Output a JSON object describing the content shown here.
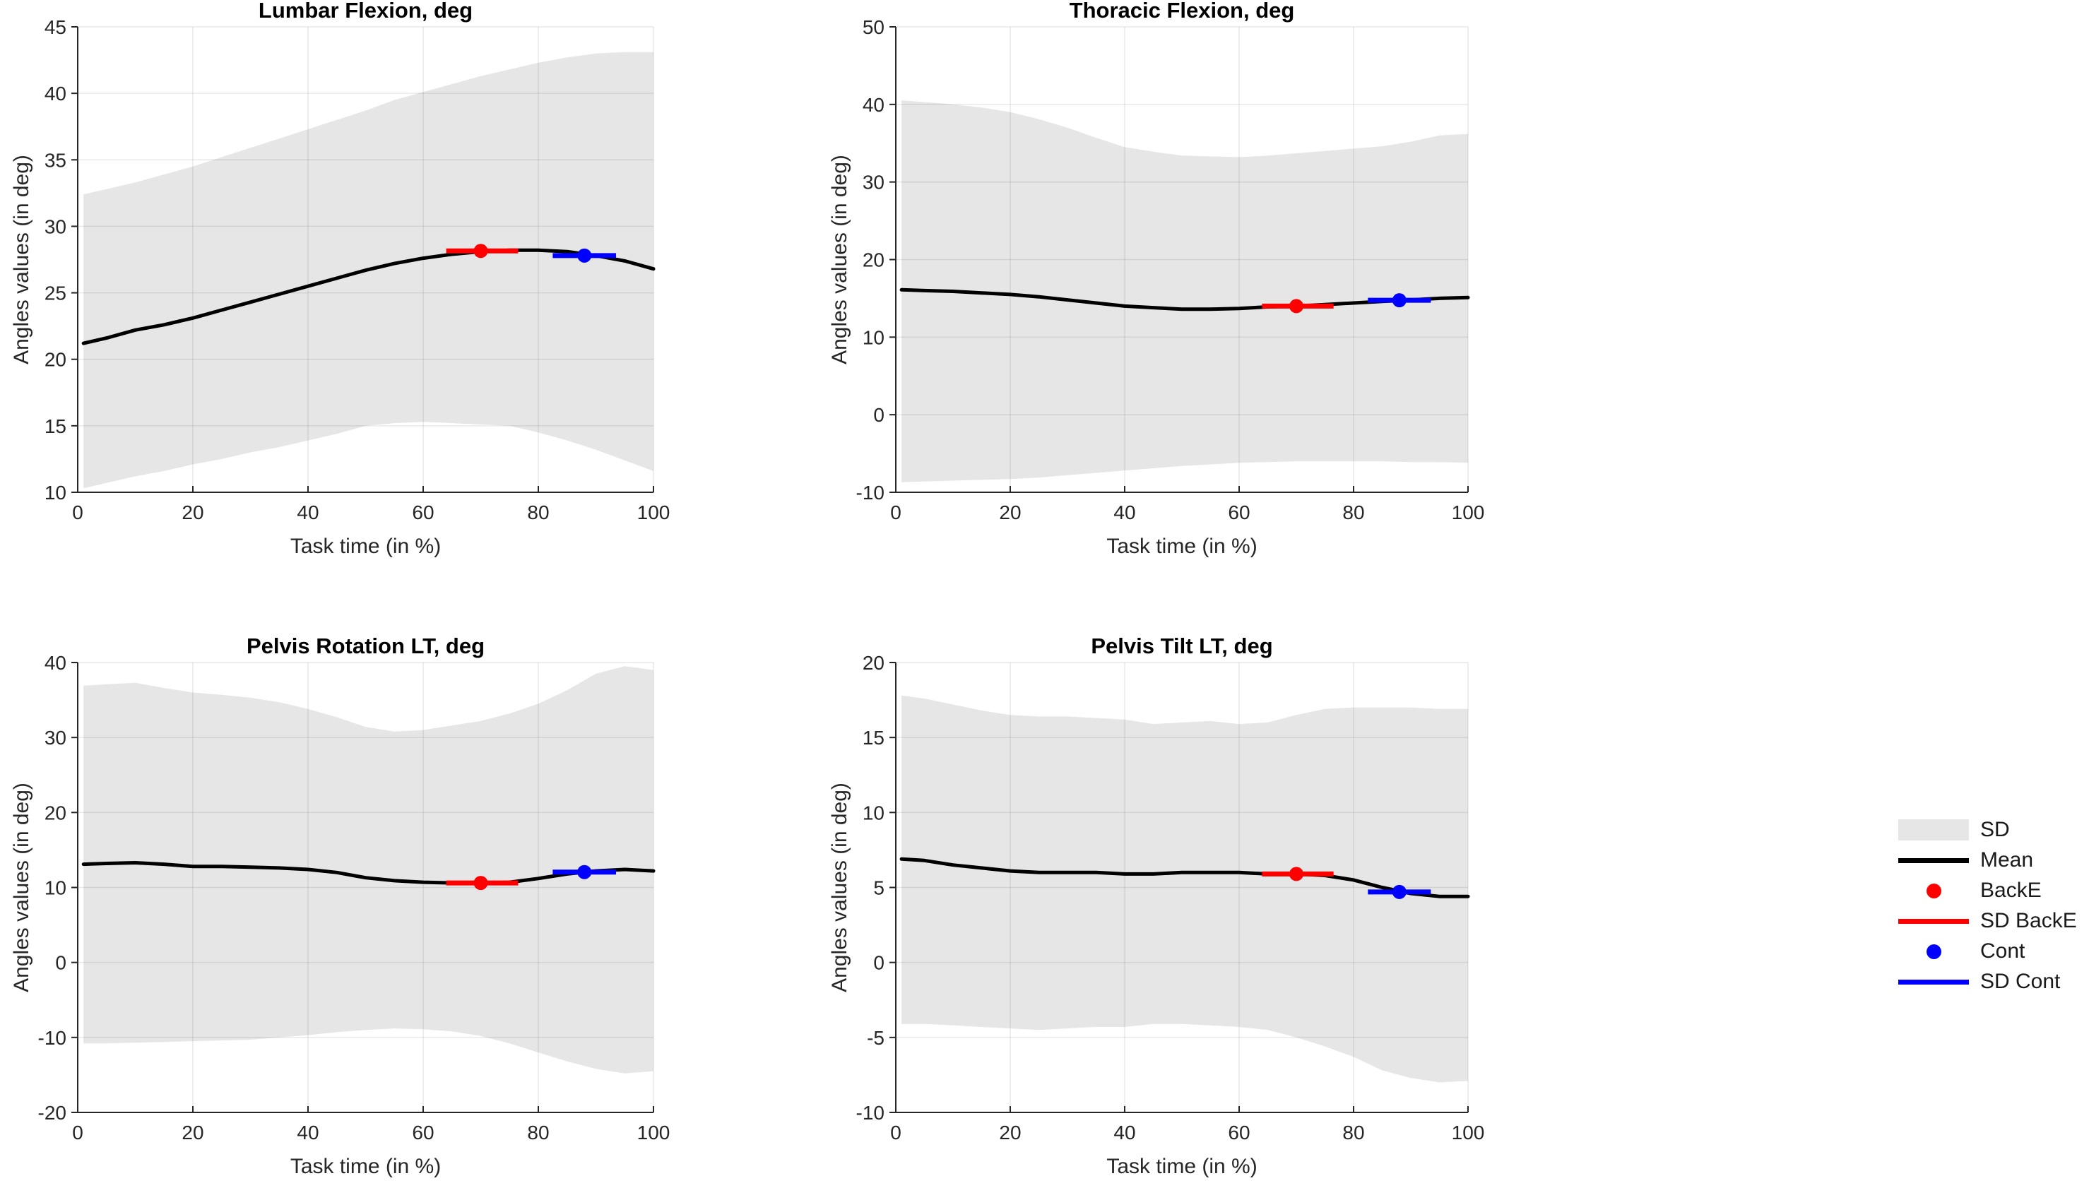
{
  "figure": {
    "background": "#ffffff"
  },
  "colors": {
    "sd_band": "#e6e6e6",
    "mean": "#000000",
    "backe": "#ff0000",
    "cont": "#0000ff",
    "axis": "#262626",
    "grid_alpha": 0.1,
    "tick_label": "#262626",
    "title": "#000000"
  },
  "legend": {
    "position": "right-middle",
    "items": [
      {
        "label": "SD",
        "type": "patch",
        "color": "#e6e6e6"
      },
      {
        "label": "Mean",
        "type": "line",
        "color": "#000000"
      },
      {
        "label": "BackE",
        "type": "dot",
        "color": "#ff0000"
      },
      {
        "label": "SD BackE",
        "type": "line",
        "color": "#ff0000"
      },
      {
        "label": "Cont",
        "type": "dot",
        "color": "#0000ff"
      },
      {
        "label": "SD Cont",
        "type": "line",
        "color": "#0000ff"
      }
    ]
  },
  "chart_data": [
    {
      "type": "line",
      "title": "Lumbar Flexion, deg",
      "xlabel": "Task time (in %)",
      "ylabel": "Angles values (in deg)",
      "xlim": [
        0,
        100
      ],
      "ylim": [
        10,
        45
      ],
      "xticks": [
        0,
        20,
        40,
        60,
        80,
        100
      ],
      "yticks": [
        10,
        15,
        20,
        25,
        30,
        35,
        40,
        45
      ],
      "grid": true,
      "x": [
        1,
        5,
        10,
        15,
        20,
        25,
        30,
        35,
        40,
        45,
        50,
        55,
        60,
        65,
        70,
        75,
        80,
        85,
        90,
        95,
        100
      ],
      "mean": [
        21.2,
        21.6,
        22.2,
        22.6,
        23.1,
        23.7,
        24.3,
        24.9,
        25.5,
        26.1,
        26.7,
        27.2,
        27.6,
        27.9,
        28.1,
        28.2,
        28.2,
        28.1,
        27.8,
        27.4,
        26.8
      ],
      "sd_upper": [
        32.4,
        32.8,
        33.3,
        33.9,
        34.5,
        35.2,
        35.9,
        36.6,
        37.3,
        38.0,
        38.7,
        39.5,
        40.1,
        40.7,
        41.3,
        41.8,
        42.3,
        42.7,
        43.0,
        43.1,
        43.1
      ],
      "sd_lower": [
        10.3,
        10.7,
        11.2,
        11.6,
        12.1,
        12.5,
        13.0,
        13.4,
        13.9,
        14.4,
        15.0,
        15.2,
        15.3,
        15.2,
        15.1,
        15.0,
        14.5,
        13.9,
        13.2,
        12.4,
        11.6
      ],
      "backe": {
        "x": 70,
        "y": 28.15,
        "sd_x": [
          64,
          76.5
        ]
      },
      "cont": {
        "x": 88,
        "y": 27.8,
        "sd_x": [
          82.5,
          93.5
        ]
      }
    },
    {
      "type": "line",
      "title": "Thoracic Flexion, deg",
      "xlabel": "Task time (in %)",
      "ylabel": "Angles values (in deg)",
      "xlim": [
        0,
        100
      ],
      "ylim": [
        -10,
        50
      ],
      "xticks": [
        0,
        20,
        40,
        60,
        80,
        100
      ],
      "yticks": [
        -10,
        0,
        10,
        20,
        30,
        40,
        50
      ],
      "grid": true,
      "x": [
        1,
        5,
        10,
        15,
        20,
        25,
        30,
        35,
        40,
        45,
        50,
        55,
        60,
        65,
        70,
        75,
        80,
        85,
        90,
        95,
        100
      ],
      "mean": [
        16.1,
        16.0,
        15.9,
        15.7,
        15.5,
        15.2,
        14.8,
        14.4,
        14.0,
        13.8,
        13.6,
        13.6,
        13.7,
        13.9,
        14.0,
        14.2,
        14.4,
        14.6,
        14.8,
        15.0,
        15.1
      ],
      "sd_upper": [
        40.5,
        40.3,
        40.0,
        39.6,
        39.0,
        38.1,
        37.0,
        35.7,
        34.5,
        33.9,
        33.4,
        33.3,
        33.2,
        33.4,
        33.7,
        34.0,
        34.3,
        34.6,
        35.2,
        36.0,
        36.2
      ],
      "sd_lower": [
        -8.7,
        -8.6,
        -8.5,
        -8.4,
        -8.3,
        -8.1,
        -7.8,
        -7.5,
        -7.2,
        -6.9,
        -6.6,
        -6.4,
        -6.2,
        -6.1,
        -6.0,
        -6.0,
        -6.0,
        -6.0,
        -6.1,
        -6.1,
        -6.2
      ],
      "backe": {
        "x": 70,
        "y": 14.0,
        "sd_x": [
          64,
          76.5
        ]
      },
      "cont": {
        "x": 88,
        "y": 14.75,
        "sd_x": [
          82.5,
          93.5
        ]
      }
    },
    {
      "type": "line",
      "title": "Pelvis Rotation LT, deg",
      "xlabel": "Task time (in %)",
      "ylabel": "Angles values (in deg)",
      "xlim": [
        0,
        100
      ],
      "ylim": [
        -20,
        40
      ],
      "xticks": [
        0,
        20,
        40,
        60,
        80,
        100
      ],
      "yticks": [
        -20,
        -10,
        0,
        10,
        20,
        30,
        40
      ],
      "grid": true,
      "x": [
        1,
        5,
        10,
        15,
        20,
        25,
        30,
        35,
        40,
        45,
        50,
        55,
        60,
        65,
        70,
        75,
        80,
        85,
        90,
        95,
        100
      ],
      "mean": [
        13.1,
        13.2,
        13.3,
        13.1,
        12.8,
        12.8,
        12.7,
        12.6,
        12.4,
        12.0,
        11.3,
        10.9,
        10.7,
        10.6,
        10.6,
        10.7,
        11.2,
        11.8,
        12.2,
        12.4,
        12.2
      ],
      "sd_upper": [
        36.9,
        37.1,
        37.3,
        36.6,
        36.0,
        35.7,
        35.3,
        34.7,
        33.8,
        32.7,
        31.4,
        30.8,
        31.0,
        31.6,
        32.2,
        33.2,
        34.5,
        36.3,
        38.5,
        39.5,
        39.0
      ],
      "sd_lower": [
        -10.8,
        -10.8,
        -10.7,
        -10.6,
        -10.5,
        -10.4,
        -10.3,
        -10.0,
        -9.7,
        -9.3,
        -9.0,
        -8.8,
        -8.9,
        -9.2,
        -9.8,
        -10.8,
        -12.0,
        -13.2,
        -14.2,
        -14.8,
        -14.5
      ],
      "backe": {
        "x": 70,
        "y": 10.6,
        "sd_x": [
          64,
          76.5
        ]
      },
      "cont": {
        "x": 88,
        "y": 12.05,
        "sd_x": [
          82.5,
          93.5
        ]
      }
    },
    {
      "type": "line",
      "title": "Pelvis Tilt LT, deg",
      "xlabel": "Task time (in %)",
      "ylabel": "Angles values (in deg)",
      "xlim": [
        0,
        100
      ],
      "ylim": [
        -10,
        20
      ],
      "xticks": [
        0,
        20,
        40,
        60,
        80,
        100
      ],
      "yticks": [
        -10,
        -5,
        0,
        5,
        10,
        15,
        20
      ],
      "grid": true,
      "x": [
        1,
        5,
        10,
        15,
        20,
        25,
        30,
        35,
        40,
        45,
        50,
        55,
        60,
        65,
        70,
        75,
        80,
        85,
        90,
        95,
        100
      ],
      "mean": [
        6.9,
        6.8,
        6.5,
        6.3,
        6.1,
        6.0,
        6.0,
        6.0,
        5.9,
        5.9,
        6.0,
        6.0,
        6.0,
        5.9,
        5.9,
        5.8,
        5.5,
        5.0,
        4.6,
        4.4,
        4.4
      ],
      "sd_upper": [
        17.8,
        17.6,
        17.2,
        16.8,
        16.5,
        16.4,
        16.4,
        16.3,
        16.2,
        15.9,
        16.0,
        16.1,
        15.9,
        16.0,
        16.5,
        16.9,
        17.0,
        17.0,
        17.0,
        16.9,
        16.9
      ],
      "sd_lower": [
        -4.1,
        -4.1,
        -4.2,
        -4.3,
        -4.4,
        -4.5,
        -4.4,
        -4.3,
        -4.3,
        -4.1,
        -4.1,
        -4.2,
        -4.3,
        -4.5,
        -5.0,
        -5.6,
        -6.3,
        -7.2,
        -7.7,
        -8.0,
        -7.9
      ],
      "backe": {
        "x": 70,
        "y": 5.9,
        "sd_x": [
          64,
          76.5
        ]
      },
      "cont": {
        "x": 88,
        "y": 4.7,
        "sd_x": [
          82.5,
          93.5
        ]
      }
    }
  ]
}
